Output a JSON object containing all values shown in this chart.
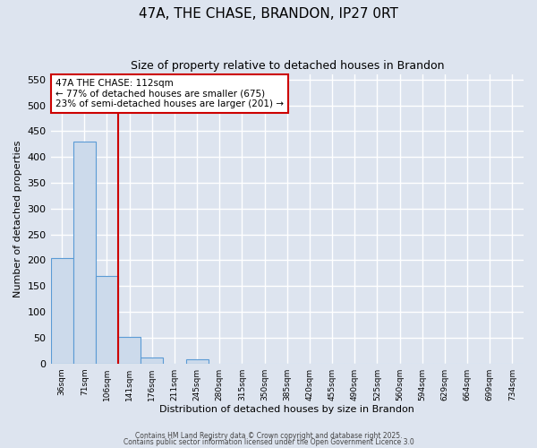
{
  "title": "47A, THE CHASE, BRANDON, IP27 0RT",
  "subtitle": "Size of property relative to detached houses in Brandon",
  "xlabel": "Distribution of detached houses by size in Brandon",
  "ylabel": "Number of detached properties",
  "bar_values": [
    205,
    430,
    170,
    52,
    12,
    0,
    8,
    0,
    0,
    0,
    0,
    0,
    0,
    0,
    0,
    0,
    0,
    0,
    0,
    0,
    0
  ],
  "bin_labels": [
    "36sqm",
    "71sqm",
    "106sqm",
    "141sqm",
    "176sqm",
    "211sqm",
    "245sqm",
    "280sqm",
    "315sqm",
    "350sqm",
    "385sqm",
    "420sqm",
    "455sqm",
    "490sqm",
    "525sqm",
    "560sqm",
    "594sqm",
    "629sqm",
    "664sqm",
    "699sqm",
    "734sqm"
  ],
  "bar_color": "#ccdaeb",
  "bar_edge_color": "#5b9bd5",
  "background_color": "#dde4ef",
  "grid_color": "#ffffff",
  "red_line_x": 2.5,
  "red_line_color": "#cc0000",
  "annotation_text": "47A THE CHASE: 112sqm\n← 77% of detached houses are smaller (675)\n23% of semi-detached houses are larger (201) →",
  "annotation_box_color": "#cc0000",
  "ylim": [
    0,
    560
  ],
  "yticks": [
    0,
    50,
    100,
    150,
    200,
    250,
    300,
    350,
    400,
    450,
    500,
    550
  ],
  "footnote1": "Contains HM Land Registry data © Crown copyright and database right 2025.",
  "footnote2": "Contains public sector information licensed under the Open Government Licence 3.0"
}
